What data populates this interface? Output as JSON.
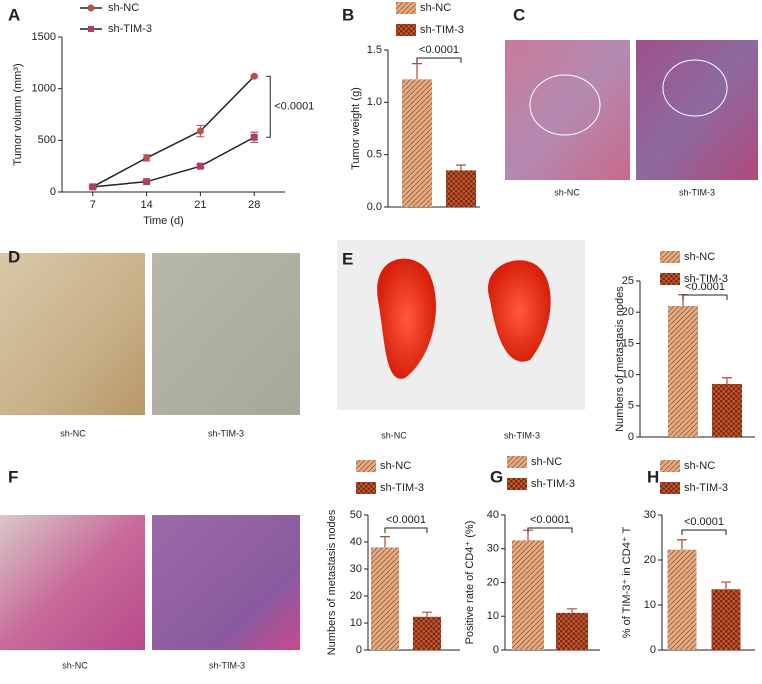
{
  "chart_data": [
    {
      "type": "line",
      "panel": "A",
      "ylabel": "Tumor volumn (mm³)",
      "xlabel": "Time (d)",
      "x": [
        7,
        14,
        21,
        28
      ],
      "xlim": [
        3,
        32
      ],
      "xticks": [
        7,
        14,
        21,
        28
      ],
      "ylim": [
        0,
        1500
      ],
      "yticks": [
        0,
        500,
        1000,
        1500
      ],
      "series": [
        {
          "name": "sh-NC",
          "color": "#b5524a",
          "values": [
            50,
            330,
            590,
            1120
          ],
          "errors": [
            15,
            30,
            55,
            10
          ]
        },
        {
          "name": "sh-TIM-3",
          "color": "#a8406e",
          "values": [
            50,
            100,
            250,
            530
          ],
          "errors": [
            10,
            10,
            15,
            50
          ]
        }
      ],
      "annotation": "<0.0001"
    },
    {
      "type": "bar",
      "panel": "B",
      "ylabel": "Tumor weight (g)",
      "categories": [
        "sh-NC",
        "sh-TIM-3"
      ],
      "values": [
        1.22,
        0.35
      ],
      "errors": [
        0.15,
        0.05
      ],
      "colors": [
        "#e3ab82",
        "#c4582c"
      ],
      "ylim": [
        0,
        1.5
      ],
      "yticks": [
        {
          "value": 0,
          "label": "0.0"
        },
        0.5,
        {
          "value": 1,
          "label": "1.0"
        },
        1.5
      ],
      "annotation": "<0.0001"
    },
    {
      "type": "bar",
      "panel": "E",
      "ylabel": "Numbers of metastasis nodes",
      "categories": [
        "sh-NC",
        "sh-TIM-3"
      ],
      "values": [
        21,
        8.5
      ],
      "errors": [
        1.8,
        1
      ],
      "colors": [
        "#e3ab82",
        "#c4582c"
      ],
      "ylim": [
        0,
        25
      ],
      "yticks": [
        0,
        5,
        10,
        15,
        20,
        25
      ],
      "annotation": "<0.0001"
    },
    {
      "type": "bar",
      "panel": "F",
      "ylabel": "Numbers of metastasis nodes",
      "categories": [
        "sh-NC",
        "sh-TIM-3"
      ],
      "values": [
        38,
        12.3
      ],
      "errors": [
        4,
        1.7
      ],
      "colors": [
        "#e3ab82",
        "#c4582c"
      ],
      "ylim": [
        0,
        50
      ],
      "yticks": [
        0,
        10,
        20,
        30,
        40,
        50
      ],
      "annotation": "<0.0001"
    },
    {
      "type": "bar",
      "panel": "G",
      "ylabel": "Positive rate of CD4⁺ (%)",
      "categories": [
        "sh-NC",
        "sh-TIM-3"
      ],
      "values": [
        32.5,
        11
      ],
      "errors": [
        3,
        1.2
      ],
      "colors": [
        "#e3ab82",
        "#c4582c"
      ],
      "ylim": [
        0,
        40
      ],
      "yticks": [
        0,
        10,
        20,
        30,
        40
      ],
      "annotation": "<0.0001"
    },
    {
      "type": "bar",
      "panel": "H",
      "ylabel": "% of TIM-3⁺ in CD4⁺ T",
      "categories": [
        "sh-NC",
        "sh-TIM-3"
      ],
      "values": [
        22.3,
        13.5
      ],
      "errors": [
        2.2,
        1.6
      ],
      "colors": [
        "#e3ab82",
        "#c4582c"
      ],
      "ylim": [
        0,
        30
      ],
      "yticks": [
        0,
        10,
        20,
        30
      ],
      "annotation": "<0.0001"
    }
  ],
  "image_panels": [
    {
      "panel": "C",
      "captions": [
        "sh-NC",
        "sh-TIM-3"
      ]
    },
    {
      "panel": "D",
      "captions": [
        "sh-NC",
        "sh-TIM-3"
      ]
    },
    {
      "captions": [
        "sh-NC",
        "sh-TIM-3"
      ]
    },
    {
      "captions": [
        "sh-NC",
        "sh-TIM-3"
      ]
    }
  ]
}
